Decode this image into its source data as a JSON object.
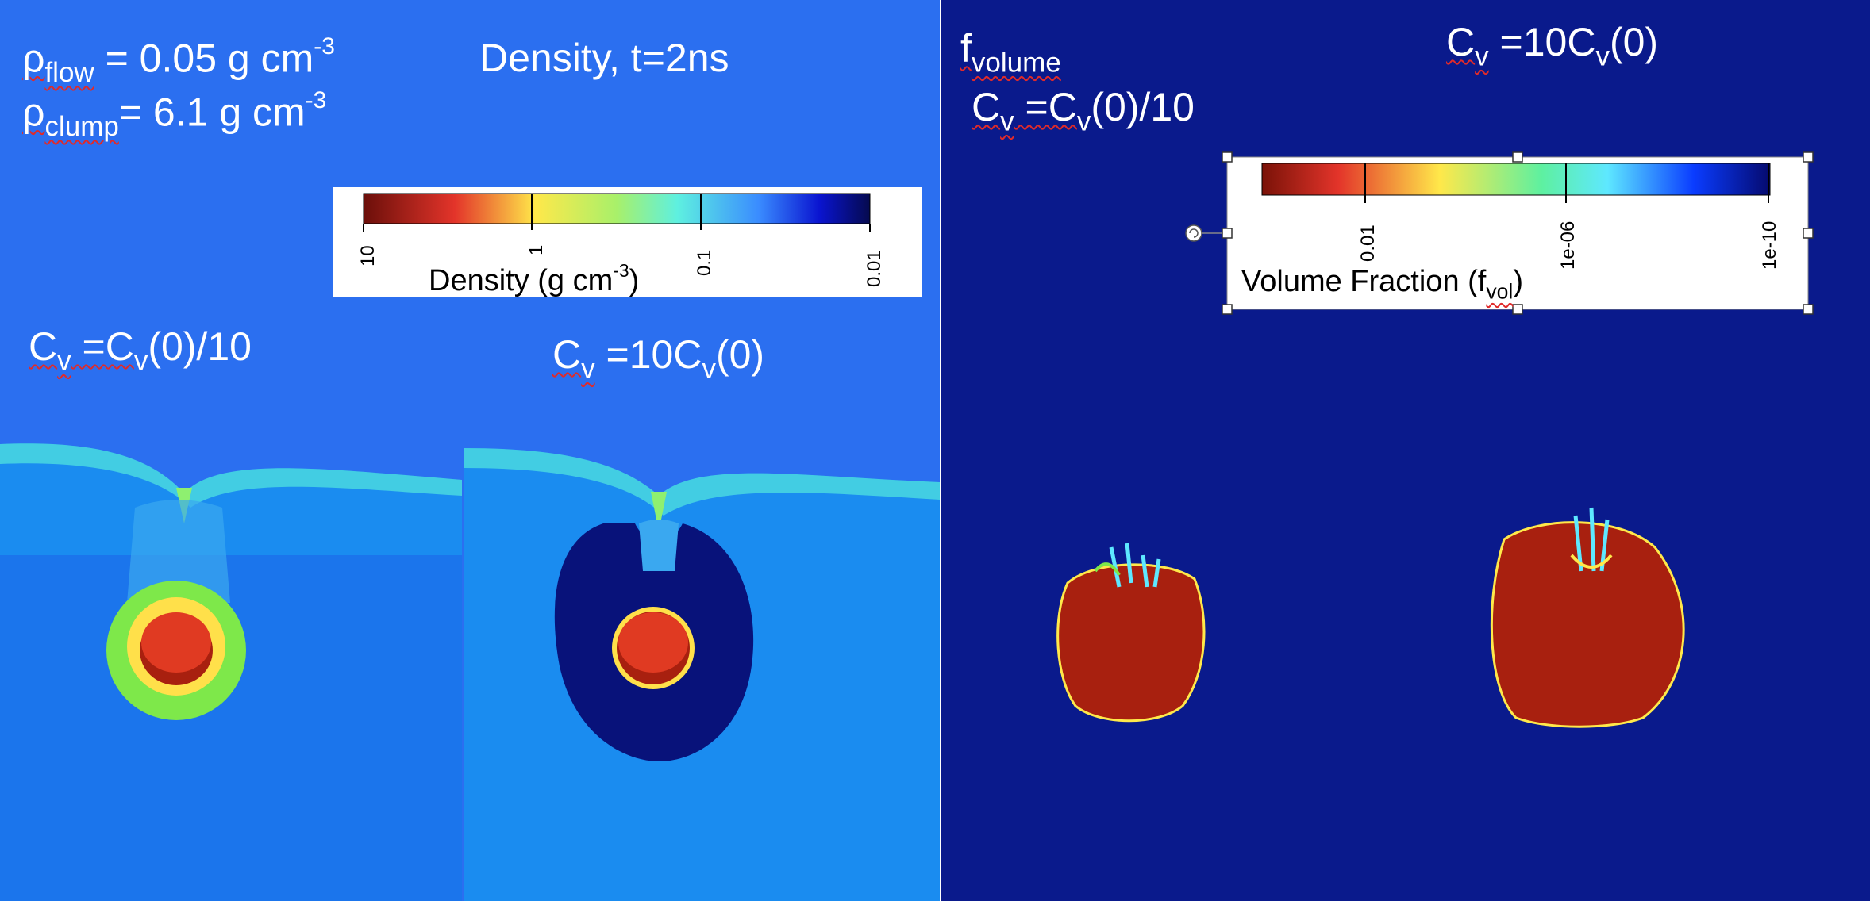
{
  "left_panel": {
    "rho_flow": {
      "symbol": "ρ",
      "sub": "flow",
      "text": " = 0.05 g cm",
      "sup": "-3"
    },
    "rho_clump": {
      "symbol": "ρ",
      "sub": "clump",
      "text": "= 6.1 g cm",
      "sup": "-3"
    },
    "title": "Density, t=2ns",
    "colorbar": {
      "label": "Density (g cm",
      "label_sup": "-3",
      "label_end": ")",
      "ticks": [
        "10",
        "1",
        "0.1",
        "0.01"
      ],
      "colors": [
        "#6b0f0a",
        "#e3342a",
        "#ffe84a",
        "#5ef0e0",
        "#3a8cff",
        "#0a14b4",
        "#050a4e"
      ]
    },
    "label_left": {
      "c": "C",
      "sub": "v",
      "text": " =C",
      "sub2": "v",
      "text2": "(0)/10"
    },
    "label_right": {
      "c": "C",
      "sub": "v",
      "text": " =10C",
      "sub2": "v",
      "text2": "(0)"
    }
  },
  "right_panel": {
    "f_volume": {
      "symbol": "f",
      "sub": "volume"
    },
    "label_top_right": {
      "c": "C",
      "sub": "v",
      "text": " =10C",
      "sub2": "v",
      "text2": "(0)"
    },
    "label_left": {
      "c": "C",
      "sub": "v",
      "text": " =C",
      "sub2": "v",
      "text2": "(0)/10"
    },
    "colorbar": {
      "label": "Volume Fraction (f",
      "label_sub": "vol",
      "label_end": ")",
      "ticks": [
        "0.01",
        "1e-06",
        "1e-10"
      ],
      "colors": [
        "#7a1208",
        "#e3342a",
        "#ffe84a",
        "#5ef0a0",
        "#5ee8ff",
        "#0a3cff",
        "#050a6e"
      ]
    }
  },
  "colors": {
    "left_background": "#2b6ff0",
    "right_background": "#0a1a8c",
    "clump_red": "#e03a22",
    "clump_dark_red": "#a8200f",
    "shell_green": "#7ee84a",
    "cavity_dark": "#08127a"
  }
}
